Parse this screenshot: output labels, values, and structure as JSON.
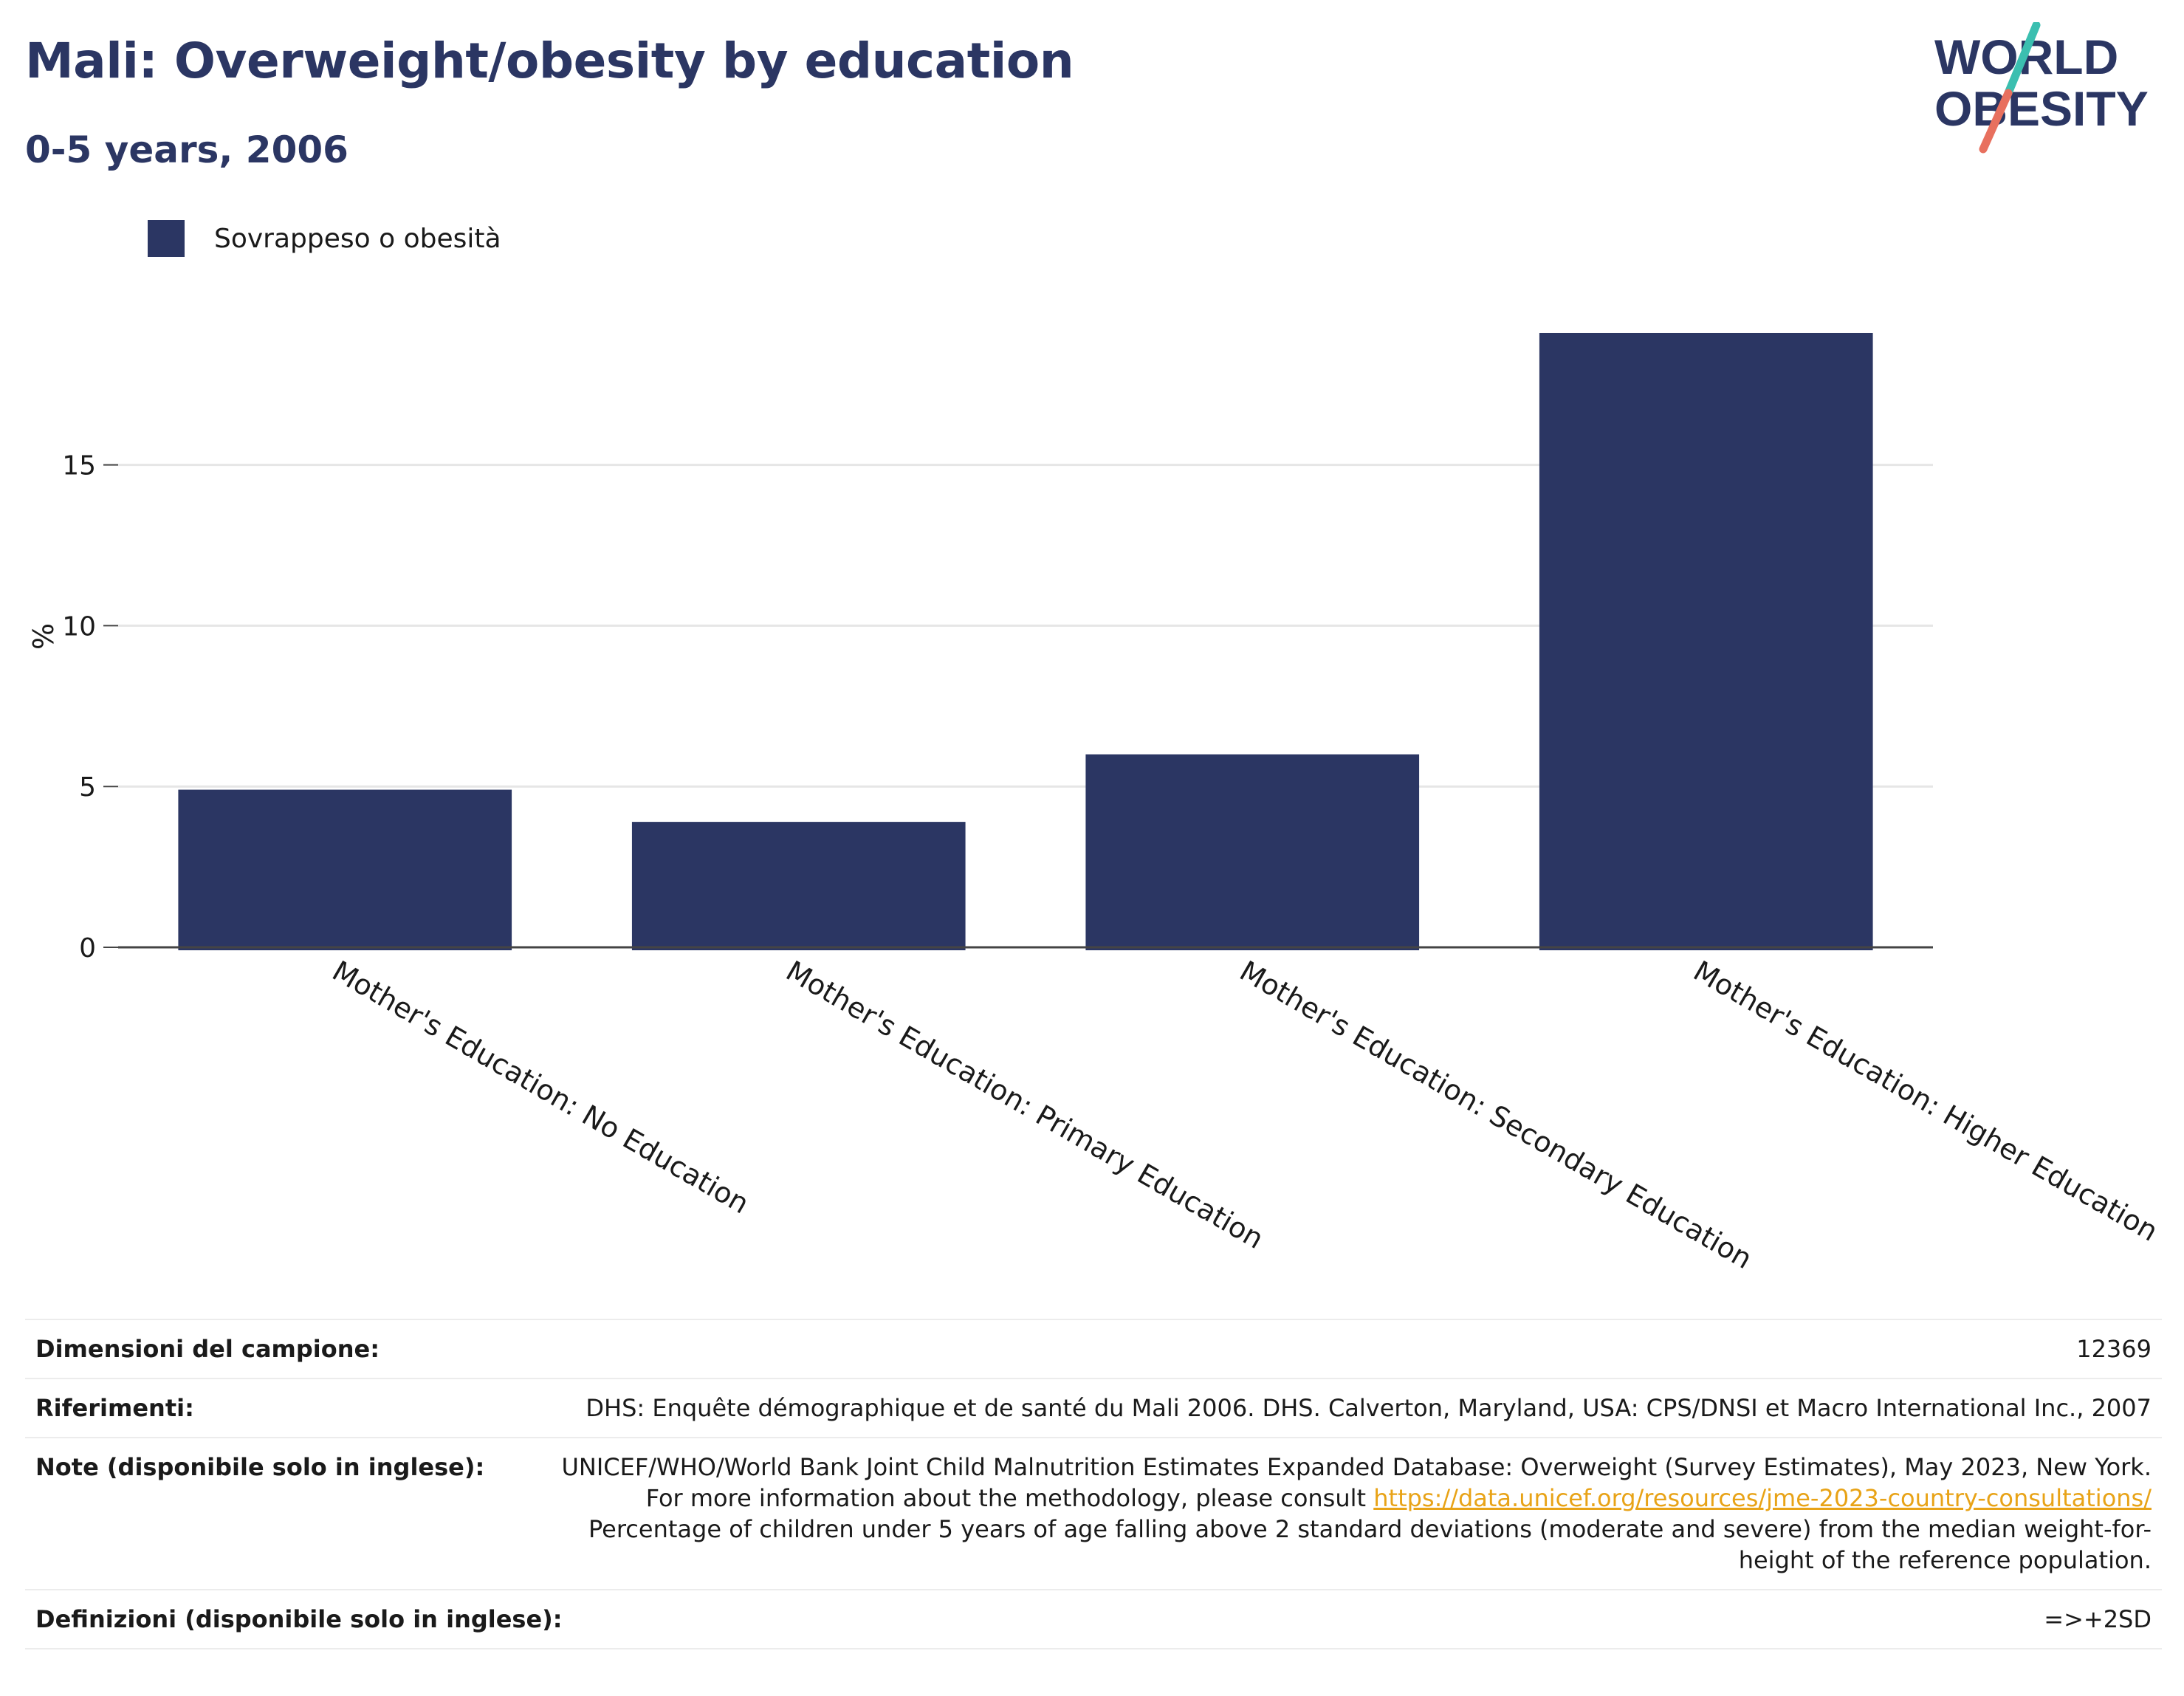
{
  "header": {
    "title": "Mali: Overweight/obesity by education",
    "subtitle": "0-5 years, 2006"
  },
  "logo": {
    "line1": "WORLD",
    "line2": "OBESITY",
    "text_color": "#2b3663",
    "accent_teal": "#3bbfb0",
    "accent_coral": "#e8705e"
  },
  "colors": {
    "bar": "#2b3663",
    "grid": "#e6e6e6",
    "axis": "#444444"
  },
  "chart_data": {
    "type": "bar",
    "categories": [
      "Mother's Education: No Education",
      "Mother's Education: Primary Education",
      "Mother's Education: Secondary Education",
      "Mother's Education: Higher Education"
    ],
    "series": [
      {
        "name": "Sovrappeso o obesità",
        "values": [
          4.9,
          3.9,
          6.0,
          19.1
        ]
      }
    ],
    "ylabel": "%",
    "xlabel": "",
    "yticks": [
      0,
      5,
      10,
      15
    ],
    "ylim": [
      0,
      20.5
    ],
    "grid": true,
    "legend_position": "top-left"
  },
  "info": {
    "sample_label": "Dimensioni del campione:",
    "sample_value": "12369",
    "references_label": "Riferimenti:",
    "references_value": "DHS: Enquête démographique et de santé du Mali 2006. DHS. Calverton, Maryland, USA: CPS/DNSI et Macro International Inc., 2007",
    "notes_label": "Note (disponibile solo in inglese):",
    "notes_text1": "UNICEF/WHO/World Bank Joint Child Malnutrition Estimates Expanded Database: Overweight (Survey Estimates), May 2023, New York. For more information about the methodology, please consult ",
    "notes_link": "https://data.unicef.org/resources/jme-2023-country-consultations/",
    "notes_text2": "Percentage of children under 5 years of age falling above 2 standard deviations (moderate and severe) from the median weight-for-height of the reference population.",
    "definitions_label": "Definizioni (disponibile solo in inglese):",
    "definitions_value": "=>+2SD"
  }
}
